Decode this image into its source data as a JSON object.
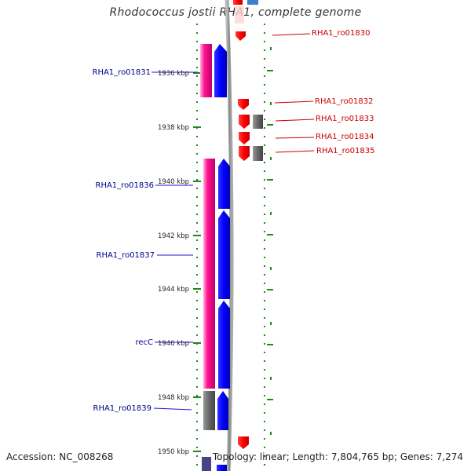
{
  "title": "Rhodococcus jostii RHA1, complete genome",
  "footer": {
    "accession": "Accession: NC_008268",
    "stats": "Topology: linear; Length: 7,804,765 bp; Genes: 7,274"
  },
  "colors": {
    "pink_cds": "#ff1493",
    "blue_cds": "#0000ff",
    "red_cds": "#ff0000",
    "grey_cds": "#666666",
    "tick_green": "#1a8a1a",
    "backbone": "#999999",
    "label_blue": "#00008b",
    "label_red": "#cc0000"
  },
  "scale": {
    "unit": "kbp",
    "kbp_per_major": 2,
    "major_ticks": [
      "1936 kbp",
      "1938 kbp",
      "1940 kbp",
      "1942 kbp",
      "1944 kbp",
      "1946 kbp",
      "1948 kbp",
      "1950 kbp"
    ]
  },
  "left_labels": [
    {
      "text": "RHA1_ro01831"
    },
    {
      "text": "RHA1_ro01836"
    },
    {
      "text": "RHA1_ro01837"
    },
    {
      "text": "recC"
    },
    {
      "text": "RHA1_ro01839"
    }
  ],
  "right_labels": [
    {
      "text": "RHA1_ro01830"
    },
    {
      "text": "RHA1_ro01832"
    },
    {
      "text": "RHA1_ro01833"
    },
    {
      "text": "RHA1_ro01834"
    },
    {
      "text": "RHA1_ro01835"
    }
  ]
}
